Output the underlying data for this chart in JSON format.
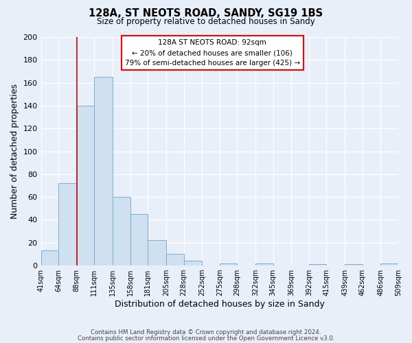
{
  "title": "128A, ST NEOTS ROAD, SANDY, SG19 1BS",
  "subtitle": "Size of property relative to detached houses in Sandy",
  "xlabel": "Distribution of detached houses by size in Sandy",
  "ylabel": "Number of detached properties",
  "bar_color": "#cfe0f0",
  "bar_edge_color": "#7bafd4",
  "background_color": "#e8eff8",
  "bin_edges": [
    41,
    64,
    88,
    111,
    135,
    158,
    181,
    205,
    228,
    252,
    275,
    298,
    322,
    345,
    369,
    392,
    415,
    439,
    462,
    486,
    509
  ],
  "bar_heights": [
    13,
    72,
    140,
    165,
    60,
    45,
    22,
    10,
    4,
    0,
    2,
    0,
    2,
    0,
    0,
    1,
    0,
    1,
    0,
    2
  ],
  "red_line_x": 88,
  "ylim": [
    0,
    200
  ],
  "yticks": [
    0,
    20,
    40,
    60,
    80,
    100,
    120,
    140,
    160,
    180,
    200
  ],
  "annotation_title": "128A ST NEOTS ROAD: 92sqm",
  "annotation_line1": "← 20% of detached houses are smaller (106)",
  "annotation_line2": "79% of semi-detached houses are larger (425) →",
  "footer_line1": "Contains HM Land Registry data © Crown copyright and database right 2024.",
  "footer_line2": "Contains public sector information licensed under the Open Government Licence v3.0.",
  "tick_labels": [
    "41sqm",
    "64sqm",
    "88sqm",
    "111sqm",
    "135sqm",
    "158sqm",
    "181sqm",
    "205sqm",
    "228sqm",
    "252sqm",
    "275sqm",
    "298sqm",
    "322sqm",
    "345sqm",
    "369sqm",
    "392sqm",
    "415sqm",
    "439sqm",
    "462sqm",
    "486sqm",
    "509sqm"
  ]
}
